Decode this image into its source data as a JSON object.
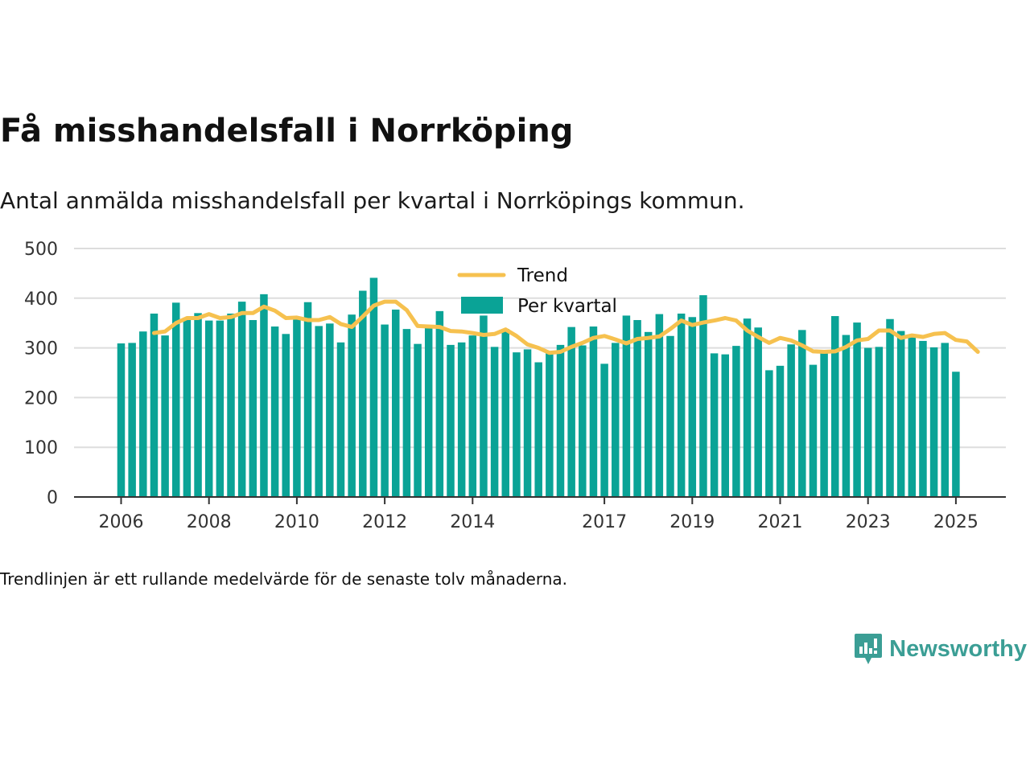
{
  "title": "Få misshandelsfall i Norrköping",
  "subtitle": "Antal anmälda misshandelsfall per kvartal i Norrköpings kommun.",
  "note": "Trendlinjen är ett rullande medelvärde för de senaste tolv månaderna.",
  "brand": {
    "name": "Newsworthy",
    "icon": "newsworthy-logo-icon",
    "color": "#3b9e95"
  },
  "colors": {
    "bar": "#0aa396",
    "trend": "#f6c14f",
    "grid": "#dddddd",
    "axis": "#333333"
  },
  "chart_data": {
    "type": "bar",
    "ylim": [
      0,
      500
    ],
    "yticks": [
      0,
      100,
      200,
      300,
      400,
      500
    ],
    "xtick_labels": [
      "2006",
      "2008",
      "2010",
      "2012",
      "2014",
      "2017",
      "2019",
      "2021",
      "2023",
      "2025"
    ],
    "xtick_quarter_index": [
      0,
      8,
      16,
      24,
      32,
      44,
      52,
      60,
      68,
      76
    ],
    "grid": true,
    "legend_position": "top-center",
    "legend": [
      "Trend",
      "Per kvartal"
    ],
    "series": [
      {
        "name": "Per kvartal",
        "type": "bar",
        "values": [
          309,
          310,
          333,
          369,
          325,
          391,
          358,
          370,
          355,
          355,
          369,
          393,
          356,
          408,
          343,
          328,
          357,
          392,
          344,
          349,
          311,
          367,
          415,
          441,
          347,
          377,
          338,
          308,
          340,
          374,
          306,
          311,
          325,
          365,
          302,
          338,
          291,
          297,
          271,
          290,
          306,
          342,
          305,
          343,
          268,
          310,
          365,
          356,
          332,
          368,
          324,
          369,
          362,
          406,
          289,
          287,
          304,
          359,
          341,
          255,
          264,
          307,
          336,
          266,
          295,
          364,
          326,
          351,
          300,
          302,
          358,
          334,
          321,
          314,
          301,
          310,
          252
        ]
      },
      {
        "name": "Trend",
        "type": "line",
        "start_index": 3,
        "values": [
          330,
          333,
          350,
          360,
          360,
          368,
          360,
          362,
          370,
          370,
          383,
          375,
          360,
          361,
          356,
          356,
          362,
          348,
          342,
          363,
          385,
          393,
          393,
          376,
          344,
          343,
          342,
          334,
          333,
          330,
          326,
          328,
          337,
          324,
          307,
          300,
          290,
          292,
          302,
          310,
          320,
          324,
          317,
          309,
          318,
          320,
          323,
          338,
          355,
          346,
          351,
          355,
          360,
          355,
          335,
          322,
          310,
          320,
          315,
          305,
          293,
          292,
          293,
          302,
          315,
          318,
          335,
          335,
          320,
          325,
          322,
          328,
          330,
          316,
          313,
          292
        ]
      }
    ]
  }
}
